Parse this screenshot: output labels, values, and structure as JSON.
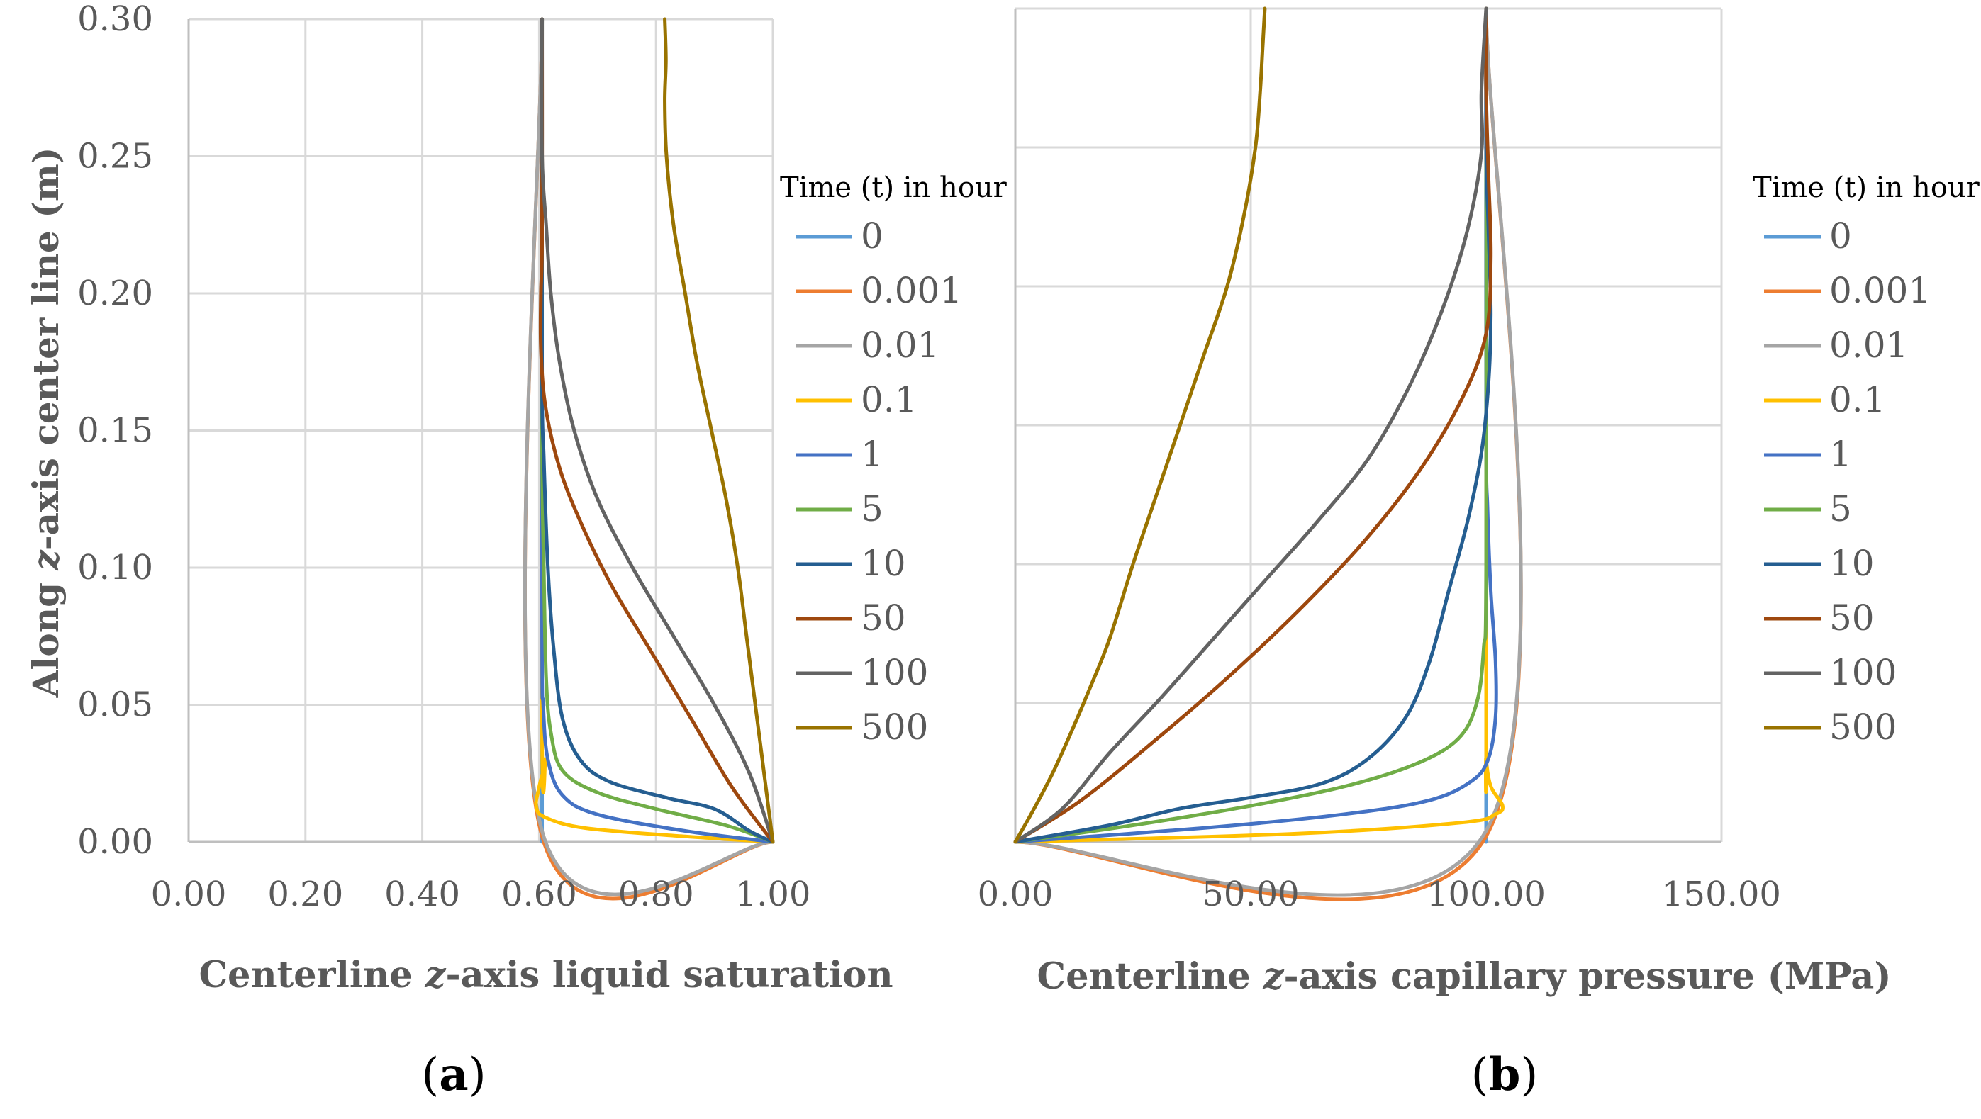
{
  "chart_data": [
    {
      "panel": "a",
      "panel_label": "(a)",
      "type": "line",
      "xlabel": "Centerline z-axis liquid saturation",
      "ylabel": "Along z-axis center line (m)",
      "xlim": [
        0,
        1
      ],
      "ylim": [
        0,
        0.3
      ],
      "x_ticks": [
        "0.00",
        "0.20",
        "0.40",
        "0.60",
        "0.80",
        "1.00"
      ],
      "y_ticks": [
        "0.00",
        "0.05",
        "0.10",
        "0.15",
        "0.20",
        "0.25",
        "0.30"
      ],
      "legend_title": "Time (t) in hour",
      "series": [
        {
          "name": "0",
          "color": "#5b9bd5",
          "points": [
            [
              0.605,
              0
            ],
            [
              0.605,
              0.3
            ]
          ]
        },
        {
          "name": "0.001",
          "color": "#ed7d31",
          "points": [
            [
              1.0,
              0
            ],
            [
              0.605,
              0.002
            ],
            [
              0.605,
              0.3
            ]
          ]
        },
        {
          "name": "0.01",
          "color": "#a5a5a5",
          "points": [
            [
              1.0,
              0
            ],
            [
              0.605,
              0.004
            ],
            [
              0.605,
              0.3
            ]
          ]
        },
        {
          "name": "0.1",
          "color": "#ffc000",
          "points": [
            [
              1.0,
              0
            ],
            [
              0.85,
              0.002
            ],
            [
              0.68,
              0.005
            ],
            [
              0.61,
              0.009
            ],
            [
              0.595,
              0.013
            ],
            [
              0.6,
              0.02
            ],
            [
              0.61,
              0.03
            ],
            [
              0.605,
              0.04
            ],
            [
              0.605,
              0.3
            ]
          ]
        },
        {
          "name": "1",
          "color": "#4472c4",
          "points": [
            [
              1.0,
              0
            ],
            [
              0.85,
              0.004
            ],
            [
              0.7,
              0.01
            ],
            [
              0.64,
              0.017
            ],
            [
              0.615,
              0.03
            ],
            [
              0.607,
              0.05
            ],
            [
              0.605,
              0.08
            ],
            [
              0.605,
              0.3
            ]
          ]
        },
        {
          "name": "5",
          "color": "#70ad47",
          "points": [
            [
              1.0,
              0
            ],
            [
              0.92,
              0.006
            ],
            [
              0.8,
              0.012
            ],
            [
              0.7,
              0.018
            ],
            [
              0.64,
              0.026
            ],
            [
              0.62,
              0.04
            ],
            [
              0.612,
              0.06
            ],
            [
              0.608,
              0.1
            ],
            [
              0.605,
              0.15
            ],
            [
              0.605,
              0.3
            ]
          ]
        },
        {
          "name": "10",
          "color": "#255e91",
          "points": [
            [
              1.0,
              0
            ],
            [
              0.96,
              0.004
            ],
            [
              0.9,
              0.012
            ],
            [
              0.82,
              0.016
            ],
            [
              0.72,
              0.022
            ],
            [
              0.67,
              0.03
            ],
            [
              0.64,
              0.045
            ],
            [
              0.625,
              0.07
            ],
            [
              0.615,
              0.1
            ],
            [
              0.608,
              0.14
            ],
            [
              0.605,
              0.17
            ],
            [
              0.605,
              0.3
            ]
          ]
        },
        {
          "name": "50",
          "color": "#9e480e",
          "points": [
            [
              1.0,
              0
            ],
            [
              0.93,
              0.02
            ],
            [
              0.86,
              0.045
            ],
            [
              0.79,
              0.07
            ],
            [
              0.72,
              0.095
            ],
            [
              0.66,
              0.122
            ],
            [
              0.63,
              0.14
            ],
            [
              0.61,
              0.16
            ],
            [
              0.603,
              0.18
            ],
            [
              0.603,
              0.2
            ],
            [
              0.605,
              0.22
            ],
            [
              0.605,
              0.3
            ]
          ]
        },
        {
          "name": "100",
          "color": "#636363",
          "points": [
            [
              1.0,
              0
            ],
            [
              0.96,
              0.025
            ],
            [
              0.9,
              0.05
            ],
            [
              0.83,
              0.075
            ],
            [
              0.76,
              0.1
            ],
            [
              0.7,
              0.125
            ],
            [
              0.66,
              0.15
            ],
            [
              0.635,
              0.175
            ],
            [
              0.62,
              0.2
            ],
            [
              0.612,
              0.225
            ],
            [
              0.605,
              0.25
            ],
            [
              0.605,
              0.3
            ]
          ]
        },
        {
          "name": "500",
          "color": "#997300",
          "points": [
            [
              1.0,
              0
            ],
            [
              0.985,
              0.025
            ],
            [
              0.97,
              0.05
            ],
            [
              0.955,
              0.075
            ],
            [
              0.94,
              0.1
            ],
            [
              0.92,
              0.125
            ],
            [
              0.895,
              0.15
            ],
            [
              0.87,
              0.175
            ],
            [
              0.85,
              0.2
            ],
            [
              0.83,
              0.225
            ],
            [
              0.818,
              0.25
            ],
            [
              0.815,
              0.27
            ],
            [
              0.817,
              0.285
            ],
            [
              0.815,
              0.3
            ]
          ]
        }
      ]
    },
    {
      "panel": "b",
      "panel_label": "(b)",
      "type": "line",
      "xlabel": "Centerline z-axis capillary pressure (MPa)",
      "xlim": [
        0,
        150
      ],
      "ylim": [
        0,
        0.3
      ],
      "x_ticks": [
        "0.00",
        "50.00",
        "100.00",
        "150.00"
      ],
      "legend_title": "Time (t) in hour",
      "series": [
        {
          "name": "0",
          "color": "#5b9bd5",
          "points": [
            [
              100,
              0
            ],
            [
              100,
              0.3
            ]
          ]
        },
        {
          "name": "0.001",
          "color": "#ed7d31",
          "points": [
            [
              0,
              0
            ],
            [
              100,
              0.002
            ],
            [
              100,
              0.3
            ]
          ]
        },
        {
          "name": "0.01",
          "color": "#a5a5a5",
          "points": [
            [
              0,
              0
            ],
            [
              100,
              0.004
            ],
            [
              100,
              0.3
            ]
          ]
        },
        {
          "name": "0.1",
          "color": "#ffc000",
          "points": [
            [
              0,
              0
            ],
            [
              60,
              0.003
            ],
            [
              95,
              0.007
            ],
            [
              102,
              0.01
            ],
            [
              103.5,
              0.013
            ],
            [
              101,
              0.02
            ],
            [
              100,
              0.03
            ],
            [
              100,
              0.04
            ],
            [
              100,
              0.3
            ]
          ]
        },
        {
          "name": "1",
          "color": "#4472c4",
          "points": [
            [
              0,
              0
            ],
            [
              40,
              0.005
            ],
            [
              70,
              0.01
            ],
            [
              88,
              0.015
            ],
            [
              97,
              0.022
            ],
            [
              100.5,
              0.03
            ],
            [
              102,
              0.045
            ],
            [
              102,
              0.065
            ],
            [
              101,
              0.09
            ],
            [
              100.3,
              0.12
            ],
            [
              100,
              0.15
            ],
            [
              100,
              0.3
            ]
          ]
        },
        {
          "name": "5",
          "color": "#70ad47",
          "points": [
            [
              0,
              0
            ],
            [
              25,
              0.006
            ],
            [
              50,
              0.013
            ],
            [
              70,
              0.02
            ],
            [
              85,
              0.028
            ],
            [
              94,
              0.037
            ],
            [
              98,
              0.05
            ],
            [
              99.5,
              0.07
            ],
            [
              100,
              0.1
            ],
            [
              100,
              0.3
            ]
          ]
        },
        {
          "name": "10",
          "color": "#255e91",
          "points": [
            [
              0,
              0
            ],
            [
              20,
              0.006
            ],
            [
              35,
              0.012
            ],
            [
              50,
              0.016
            ],
            [
              65,
              0.021
            ],
            [
              75,
              0.03
            ],
            [
              83,
              0.045
            ],
            [
              88,
              0.065
            ],
            [
              92,
              0.09
            ],
            [
              96,
              0.115
            ],
            [
              99,
              0.14
            ],
            [
              100.5,
              0.165
            ],
            [
              101,
              0.19
            ],
            [
              100.5,
              0.22
            ],
            [
              100,
              0.25
            ],
            [
              100,
              0.3
            ]
          ]
        },
        {
          "name": "50",
          "color": "#9e480e",
          "points": [
            [
              0,
              0
            ],
            [
              14,
              0.015
            ],
            [
              30,
              0.037
            ],
            [
              45,
              0.059
            ],
            [
              60,
              0.083
            ],
            [
              74,
              0.108
            ],
            [
              86,
              0.134
            ],
            [
              95,
              0.16
            ],
            [
              100,
              0.183
            ],
            [
              101,
              0.21
            ],
            [
              100.5,
              0.24
            ],
            [
              100,
              0.27
            ],
            [
              100,
              0.3
            ]
          ]
        },
        {
          "name": "100",
          "color": "#636363",
          "points": [
            [
              0,
              0
            ],
            [
              10,
              0.012
            ],
            [
              20,
              0.032
            ],
            [
              31,
              0.052
            ],
            [
              42,
              0.073
            ],
            [
              53,
              0.094
            ],
            [
              64,
              0.115
            ],
            [
              75,
              0.138
            ],
            [
              84,
              0.165
            ],
            [
              91,
              0.193
            ],
            [
              96,
              0.22
            ],
            [
              99,
              0.248
            ],
            [
              99,
              0.27
            ],
            [
              100,
              0.3
            ]
          ]
        },
        {
          "name": "500",
          "color": "#997300",
          "points": [
            [
              0,
              0
            ],
            [
              4,
              0.012
            ],
            [
              8,
              0.025
            ],
            [
              12,
              0.04
            ],
            [
              16,
              0.056
            ],
            [
              20,
              0.073
            ],
            [
              25,
              0.1
            ],
            [
              30,
              0.125
            ],
            [
              35,
              0.15
            ],
            [
              40,
              0.175
            ],
            [
              45,
              0.2
            ],
            [
              48.5,
              0.225
            ],
            [
              51,
              0.25
            ],
            [
              52,
              0.27
            ],
            [
              52.5,
              0.285
            ],
            [
              53,
              0.3
            ]
          ]
        }
      ]
    }
  ]
}
